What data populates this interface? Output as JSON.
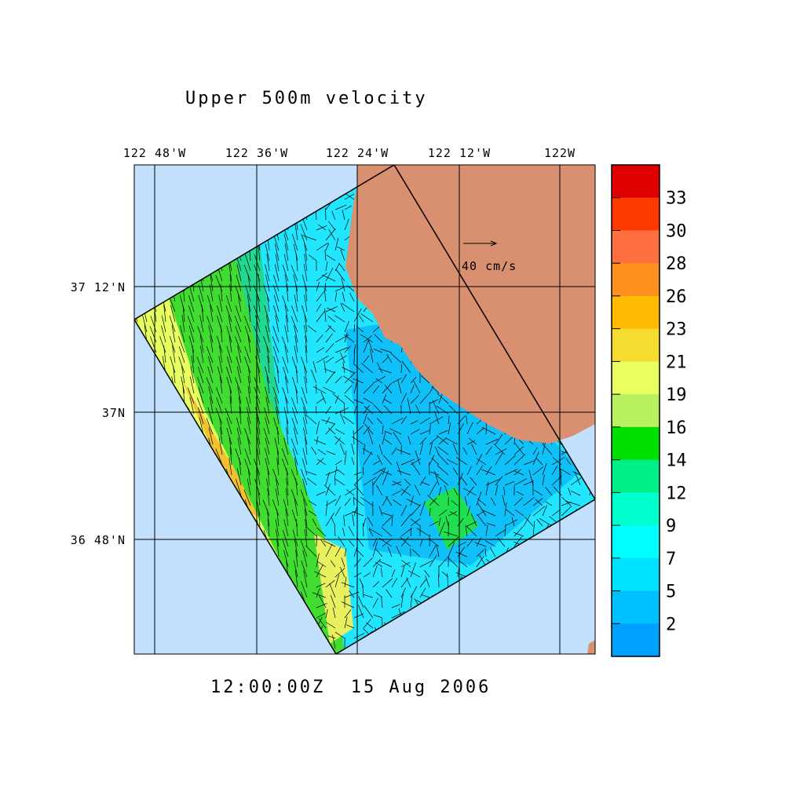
{
  "title": "Upper 500m velocity",
  "timestamp": "12:00:00Z  15 Aug 2006",
  "longitude_labels": [
    "122 48'W",
    "122 36'W",
    "122 24'W",
    "122 12'W",
    "122W"
  ],
  "latitude_labels": [
    "37 12'N",
    "37N",
    "36 48'N"
  ],
  "reference_vector": {
    "label": "40 cm/s"
  },
  "colorbar": {
    "levels": [
      33,
      30,
      28,
      26,
      23,
      21,
      19,
      16,
      14,
      12,
      9,
      7,
      5,
      2
    ],
    "colors": [
      "#e00000",
      "#ff3a00",
      "#ff7040",
      "#ff9020",
      "#ffbb00",
      "#f5dc30",
      "#eaff60",
      "#b8f060",
      "#00e000",
      "#00ee88",
      "#00ffcc",
      "#00ffff",
      "#00e0ff",
      "#00c0ff",
      "#00a0ff"
    ]
  }
}
